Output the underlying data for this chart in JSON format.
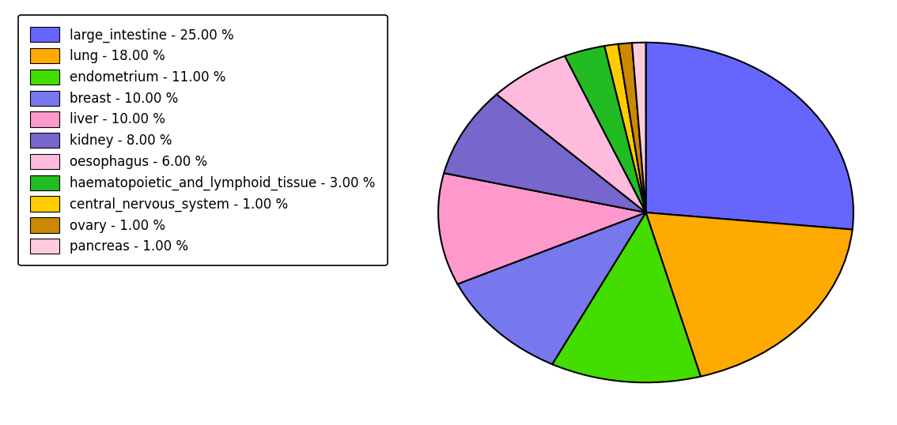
{
  "labels": [
    "large_intestine - 25.00 %",
    "lung - 18.00 %",
    "endometrium - 11.00 %",
    "breast - 10.00 %",
    "liver - 10.00 %",
    "kidney - 8.00 %",
    "oesophagus - 6.00 %",
    "haematopoietic_and_lymphoid_tissue - 3.00 %",
    "central_nervous_system - 1.00 %",
    "ovary - 1.00 %",
    "pancreas - 1.00 %"
  ],
  "values": [
    25,
    18,
    11,
    10,
    10,
    8,
    6,
    3,
    1,
    1,
    1
  ],
  "colors": [
    "#6666ff",
    "#ffaa00",
    "#44dd00",
    "#7777ee",
    "#ff99cc",
    "#7766cc",
    "#ffbbdd",
    "#22bb22",
    "#ffcc00",
    "#cc8800",
    "#ffccdd"
  ],
  "background_color": "#ffffff",
  "startangle": 90,
  "legend_fontsize": 12
}
